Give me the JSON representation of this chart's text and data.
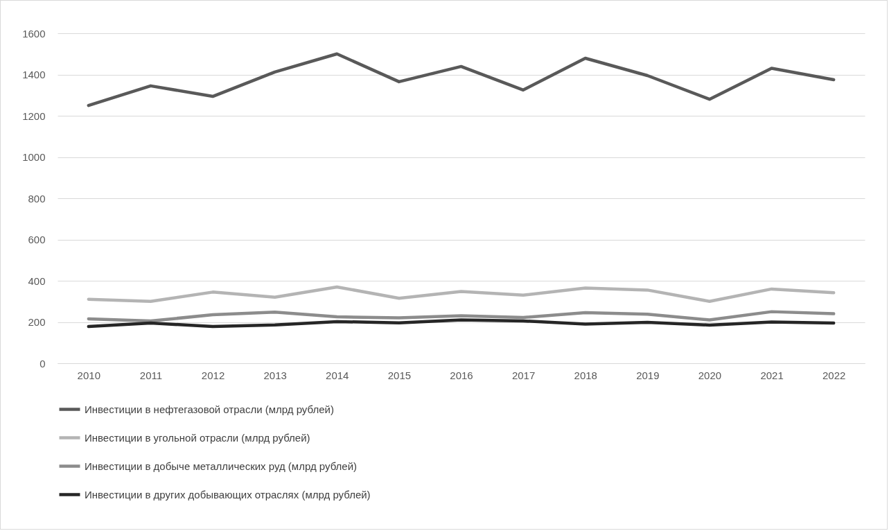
{
  "chart_data": {
    "type": "line",
    "categories": [
      "2010",
      "2011",
      "2012",
      "2013",
      "2014",
      "2015",
      "2016",
      "2017",
      "2018",
      "2019",
      "2020",
      "2021",
      "2022"
    ],
    "series": [
      {
        "name": "Инвестиции в нефтегазовой отрасли (млрд рублей)",
        "color": "#595959",
        "values": [
          1250,
          1345,
          1294,
          1412,
          1500,
          1365,
          1439,
          1325,
          1479,
          1395,
          1280,
          1430,
          1375
        ]
      },
      {
        "name": "Инвестиции в угольной отрасли (млрд рублей)",
        "color": "#b4b4b4",
        "values": [
          310,
          300,
          345,
          320,
          370,
          315,
          348,
          330,
          365,
          355,
          300,
          360,
          342
        ]
      },
      {
        "name": "Инвестиции в добыче металлических руд (млрд рублей)",
        "color": "#8c8c8c",
        "values": [
          215,
          205,
          235,
          248,
          225,
          220,
          230,
          222,
          245,
          238,
          210,
          250,
          240
        ]
      },
      {
        "name": "Инвестиции в других добывающих отраслях (млрд рублей)",
        "color": "#262626",
        "values": [
          178,
          195,
          178,
          186,
          202,
          196,
          210,
          205,
          190,
          198,
          185,
          200,
          195
        ]
      }
    ],
    "ylim": [
      0,
      1600
    ],
    "yticks": [
      0,
      200,
      400,
      600,
      800,
      1000,
      1200,
      1400,
      1600
    ],
    "grid": "y",
    "legend": "bottom",
    "marker": "none",
    "line_style": "solid"
  }
}
